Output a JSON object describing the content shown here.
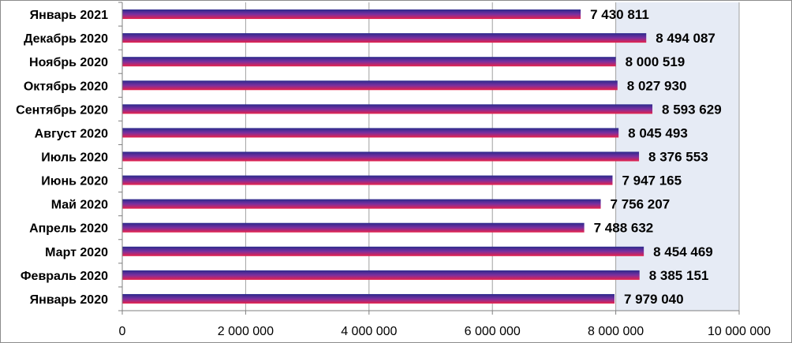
{
  "chart_data": {
    "type": "bar",
    "orientation": "horizontal",
    "categories": [
      "Январь 2021",
      "Декабрь 2020",
      "Ноябрь 2020",
      "Октябрь 2020",
      "Сентябрь 2020",
      "Август 2020",
      "Июль 2020",
      "Июнь 2020",
      "Май 2020",
      "Апрель 2020",
      "Март 2020",
      "Февраль 2020",
      "Январь 2020"
    ],
    "values": [
      7430811,
      8494087,
      8000519,
      8027930,
      8593629,
      8045493,
      8376553,
      7947165,
      7756207,
      7488632,
      8454469,
      8385151,
      7979040
    ],
    "value_labels": [
      "7 430 811",
      "8 494 087",
      "8 000 519",
      "8 027 930",
      "8 593 629",
      "8 045 493",
      "8 376 553",
      "7 947 165",
      "7 756 207",
      "7 488 632",
      "8 454 469",
      "8 385 151",
      "7 979 040"
    ],
    "x_ticks": [
      0,
      2000000,
      4000000,
      6000000,
      8000000,
      10000000
    ],
    "x_tick_labels": [
      "0",
      "2 000 000",
      "4 000 000",
      "6 000 000",
      "8 000 000",
      "10 000 000"
    ],
    "xlim": [
      0,
      10000000
    ],
    "title": "",
    "xlabel": "",
    "ylabel": "",
    "grid": "vertical",
    "legend": "none",
    "colors": {
      "bar_top": "#2a2a8c",
      "bar_mid": "#7a2fa0",
      "bar_bottom": "#e8224a",
      "plot_band": "#e6ebf5",
      "grid": "#a0a0a0",
      "axis": "#7f7f7f"
    }
  }
}
